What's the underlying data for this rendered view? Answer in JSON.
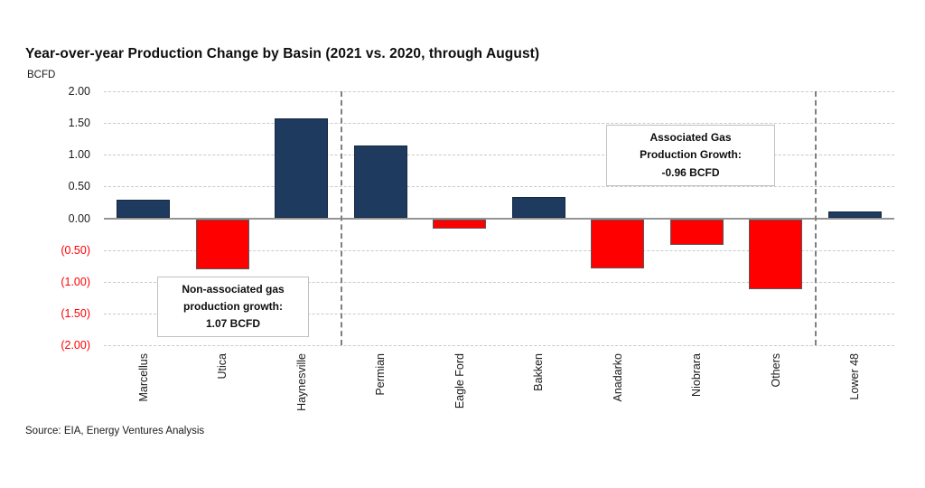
{
  "title": "Year-over-year Production Change by Basin (2021 vs. 2020, through August)",
  "source": "Source: EIA, Energy Ventures Analysis",
  "chart_data": {
    "type": "bar",
    "title": "Year-over-year Production Change by Basin (2021 vs. 2020, through August)",
    "ylabel": "BCFD",
    "categories": [
      "Marcellus",
      "Utica",
      "Haynesville",
      "Permian",
      "Eagle Ford",
      "Bakken",
      "Anadarko",
      "Niobrara",
      "Others",
      "Lower 48"
    ],
    "values": [
      0.29,
      -0.79,
      1.57,
      1.14,
      -0.15,
      0.34,
      -0.77,
      -0.41,
      -1.11,
      0.11
    ],
    "ylim": [
      -2.0,
      2.0
    ],
    "ytick_labels": [
      "2.00",
      "1.50",
      "1.00",
      "0.50",
      "0.00",
      "(0.50)",
      "(1.00)",
      "(1.50)",
      "(2.00)"
    ],
    "ytick_values": [
      2.0,
      1.5,
      1.0,
      0.5,
      0.0,
      -0.5,
      -1.0,
      -1.5,
      -2.0
    ],
    "grid": "horizontal-dashed",
    "legend": "none",
    "positive_color": "#1f3a5f",
    "negative_color": "#fe0000",
    "negative_tick_color": "#ff0000",
    "separators_after_index": [
      2,
      8
    ]
  },
  "annotations": [
    {
      "lines": [
        "Non-associated gas",
        "production growth:",
        "1.07 BCFD"
      ]
    },
    {
      "lines": [
        "Associated Gas",
        "Production Growth:",
        "-0.96 BCFD"
      ]
    }
  ]
}
